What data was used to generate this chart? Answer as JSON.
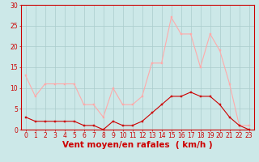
{
  "hours": [
    0,
    1,
    2,
    3,
    4,
    5,
    6,
    7,
    8,
    9,
    10,
    11,
    12,
    13,
    14,
    15,
    16,
    17,
    18,
    19,
    20,
    21,
    22,
    23
  ],
  "moyen": [
    3,
    2,
    2,
    2,
    2,
    2,
    1,
    1,
    0,
    2,
    1,
    1,
    2,
    4,
    6,
    8,
    8,
    9,
    8,
    8,
    6,
    3,
    1,
    0
  ],
  "rafales": [
    13,
    8,
    11,
    11,
    11,
    11,
    6,
    6,
    3,
    10,
    6,
    6,
    8,
    16,
    16,
    27,
    23,
    23,
    15,
    23,
    19,
    11,
    1,
    1
  ],
  "color_moyen": "#cc0000",
  "color_rafales": "#ffaaaa",
  "bg_color": "#cce8e8",
  "grid_color": "#aacccc",
  "xlabel": "Vent moyen/en rafales  ( km/h )",
  "ylim": [
    0,
    30
  ],
  "yticks": [
    0,
    5,
    10,
    15,
    20,
    25,
    30
  ],
  "tick_fontsize": 5.5,
  "xlabel_fontsize": 7.5
}
